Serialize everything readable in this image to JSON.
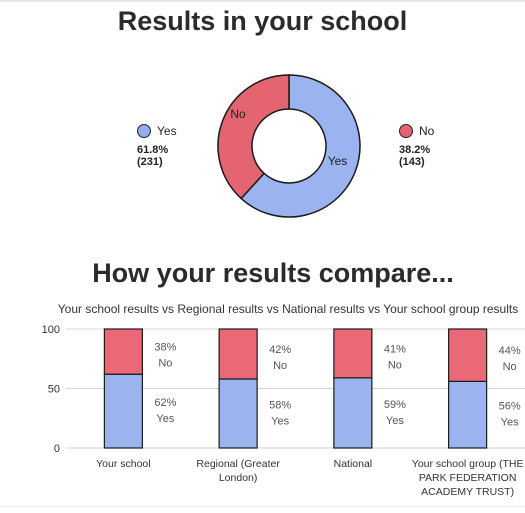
{
  "headings": {
    "results_title": "Results in your school",
    "compare_title": "How your results compare..."
  },
  "legend": {
    "yes": {
      "label": "Yes",
      "percent": "61.8%",
      "count": "(231)"
    },
    "no": {
      "label": "No",
      "percent": "38.2%",
      "count": "(143)"
    }
  },
  "colors": {
    "yes": "#91aef0",
    "no": "#e46471",
    "yes_light": "#9bb3ef",
    "no_light": "#eb6976"
  },
  "chart_data": [
    {
      "type": "pie",
      "title": "Results in your school",
      "labels": [
        "Yes",
        "No"
      ],
      "values": [
        231,
        143
      ],
      "percentages": [
        61.8,
        38.2
      ]
    },
    {
      "type": "bar",
      "stacked": true,
      "title": "Your school results vs Regional results vs National results vs Your school group results",
      "categories": [
        [
          "Your school"
        ],
        [
          "Regional (Greater",
          "London)"
        ],
        [
          "National"
        ],
        [
          "Your school group (THE",
          "PARK FEDERATION",
          "ACADEMY TRUST)"
        ]
      ],
      "series": [
        {
          "name": "Yes",
          "values": [
            62,
            58,
            59,
            56
          ],
          "labels": [
            "62%",
            "58%",
            "59%",
            "56%"
          ]
        },
        {
          "name": "No",
          "values": [
            38,
            42,
            41,
            44
          ],
          "labels": [
            "38%",
            "42%",
            "41%",
            "44%"
          ]
        }
      ],
      "yticks": [
        "0",
        "50",
        "100"
      ],
      "ylim": [
        0,
        100
      ],
      "grid": true
    }
  ]
}
